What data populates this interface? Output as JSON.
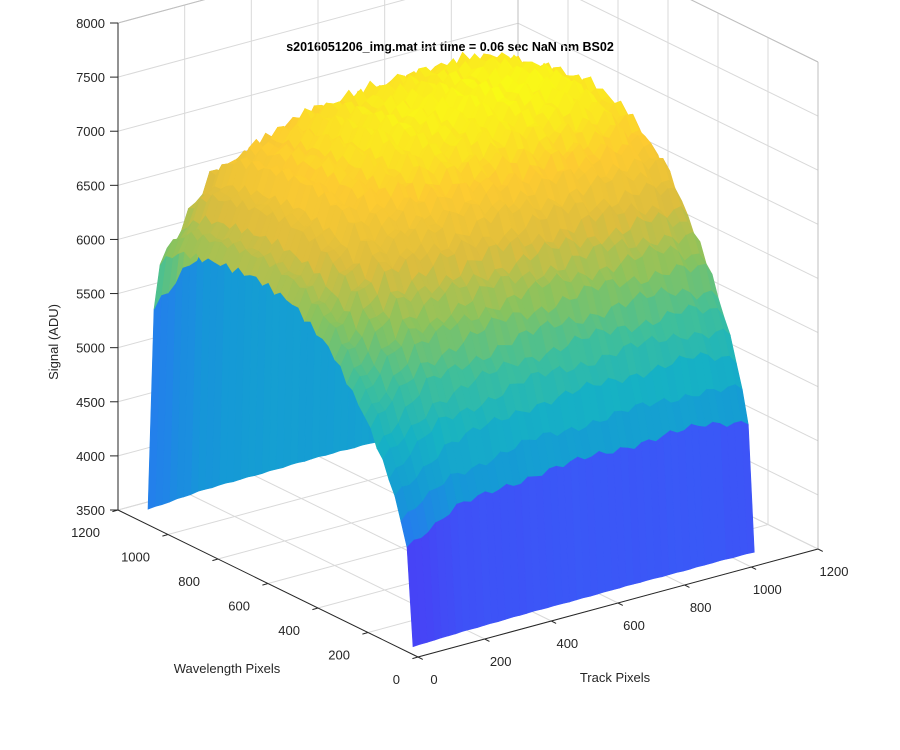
{
  "chart_data": {
    "type": "surface3d",
    "title": "s2016051206_img.mat int time = 0.06 sec  NaN nm BS02",
    "xlabel": "Track Pixels",
    "ylabel": "Wavelength Pixels",
    "zlabel": "Signal (ADU)",
    "xlim": [
      0,
      1200
    ],
    "ylim": [
      0,
      1200
    ],
    "zlim": [
      3500,
      8000
    ],
    "x_ticks": [
      "0",
      "200",
      "400",
      "600",
      "800",
      "1000",
      "1200"
    ],
    "y_ticks": [
      "0",
      "200",
      "400",
      "600",
      "800",
      "1000",
      "1200"
    ],
    "z_ticks": [
      "3500",
      "4000",
      "4500",
      "5000",
      "5500",
      "6000",
      "6500",
      "7000",
      "7500",
      "8000"
    ],
    "grid": true,
    "colormap": [
      "#3e26a8",
      "#4743f6",
      "#2c6ff8",
      "#1599d6",
      "#16b2c4",
      "#3fbf9b",
      "#89c35e",
      "#dcbd3e",
      "#fdcb31",
      "#f9fb15"
    ],
    "surface": {
      "track_range": [
        0,
        1024
      ],
      "wavelength_range": [
        20,
        1080
      ],
      "profile_wavelength": [
        20,
        40,
        100,
        200,
        350,
        500,
        650,
        800,
        950,
        1050,
        1080
      ],
      "profile_signal": [
        3600,
        4800,
        5500,
        6200,
        6900,
        7250,
        7350,
        7300,
        7200,
        6900,
        3700
      ],
      "track_falloff": [
        [
          0,
          0.72
        ],
        [
          150,
          0.9
        ],
        [
          400,
          0.98
        ],
        [
          700,
          1.0
        ],
        [
          900,
          1.0
        ],
        [
          1024,
          0.95
        ]
      ]
    }
  }
}
